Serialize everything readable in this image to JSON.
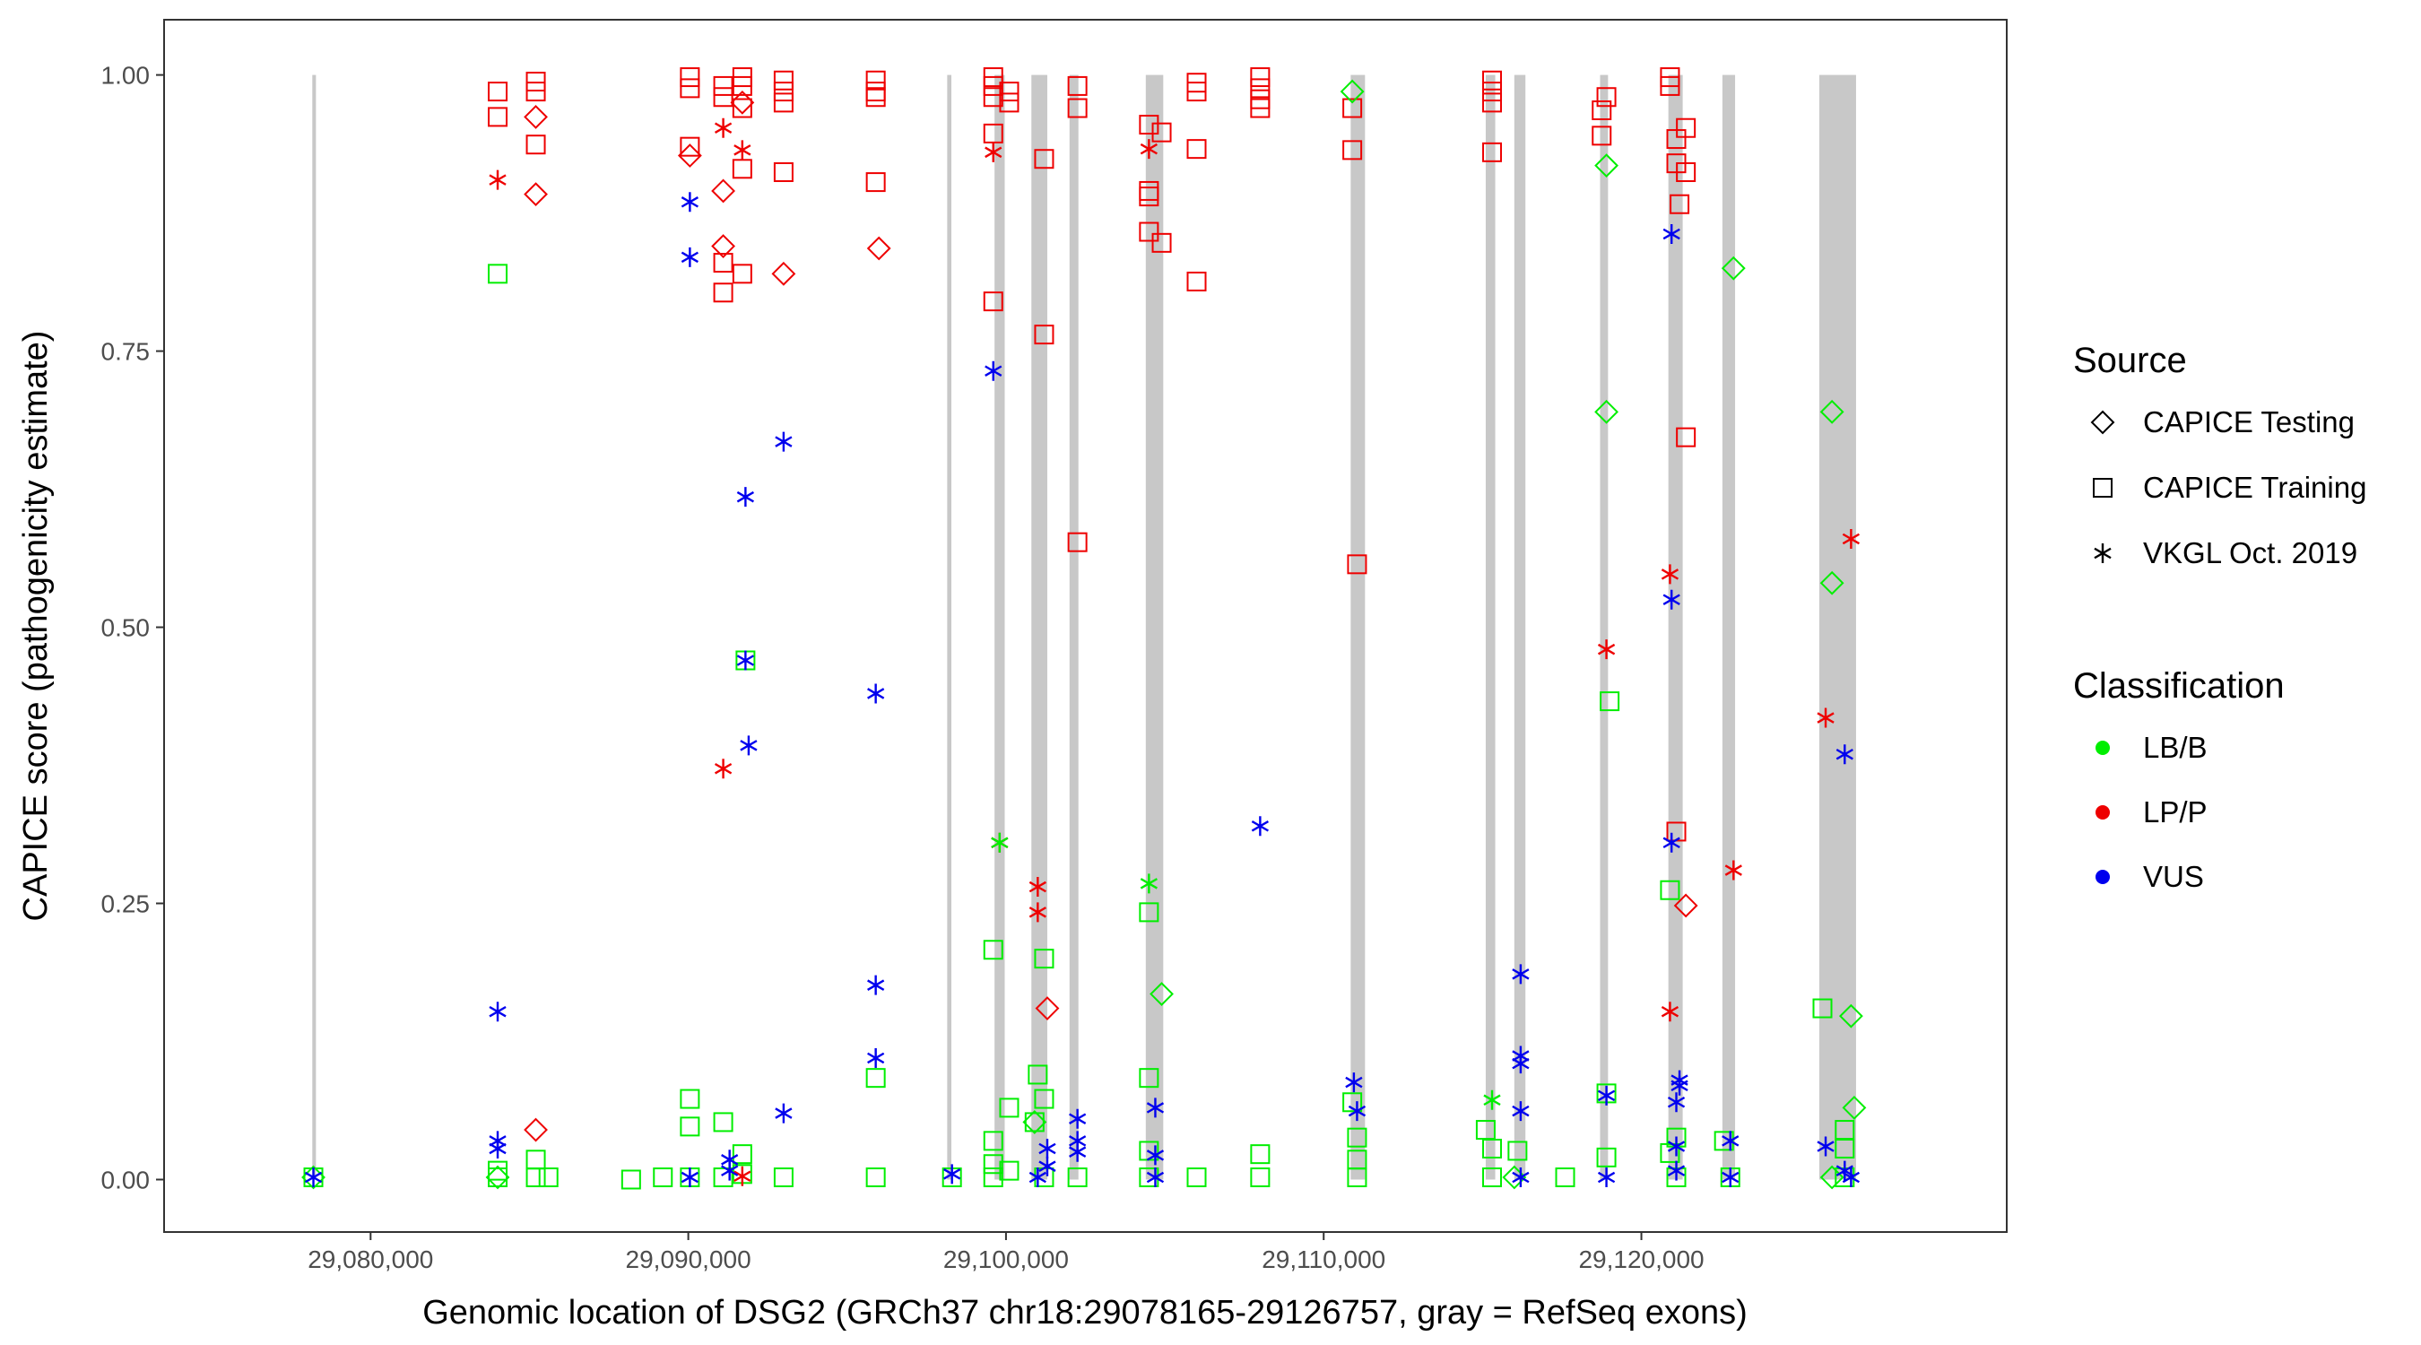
{
  "chart_data": {
    "type": "scatter",
    "title": "",
    "xlabel": "Genomic location of DSG2 (GRCh37 chr18:29078165-29126757, gray = RefSeq exons)",
    "ylabel": "CAPICE score (pathogenicity estimate)",
    "xlim": [
      29073500,
      29131500
    ],
    "ylim": [
      -0.0475,
      1.05
    ],
    "x_ticks": [
      29080000,
      29090000,
      29100000,
      29110000,
      29120000
    ],
    "x_tick_labels": [
      "29,080,000",
      "29,090,000",
      "29,100,000",
      "29,110,000",
      "29,120,000"
    ],
    "y_ticks": [
      0,
      0.25,
      0.5,
      0.75,
      1
    ],
    "y_tick_labels": [
      "0.00",
      "0.25",
      "0.50",
      "0.75",
      "1.00"
    ],
    "grid": false,
    "exons": [
      [
        29078165,
        29078280
      ],
      [
        29098150,
        29098280
      ],
      [
        29099640,
        29099960
      ],
      [
        29100800,
        29101300
      ],
      [
        29102000,
        29102280
      ],
      [
        29104400,
        29104950
      ],
      [
        29110850,
        29111300
      ],
      [
        29115100,
        29115400
      ],
      [
        29116000,
        29116350
      ],
      [
        29118700,
        29118950
      ],
      [
        29120850,
        29121300
      ],
      [
        29122550,
        29122950
      ],
      [
        29125600,
        29126757
      ]
    ],
    "legend_source": {
      "title": "Source",
      "position": "right",
      "entries": [
        {
          "label": "CAPICE Testing",
          "shape": "diamond"
        },
        {
          "label": "CAPICE Training",
          "shape": "square"
        },
        {
          "label": "VKGL Oct. 2019",
          "shape": "asterisk"
        }
      ]
    },
    "legend_class": {
      "title": "Classification",
      "position": "right",
      "entries": [
        {
          "label": "LB/B",
          "color": "#00ee00"
        },
        {
          "label": "LP/P",
          "color": "#ee0000"
        },
        {
          "label": "VUS",
          "color": "#0000ee"
        }
      ]
    },
    "series": [
      {
        "source": "CAPICE Training",
        "classification": "LP/P",
        "points": [
          [
            29084000,
            0.985
          ],
          [
            29084000,
            0.962
          ],
          [
            29085200,
            0.994
          ],
          [
            29085200,
            0.985
          ],
          [
            29085200,
            0.937
          ],
          [
            29090050,
            0.998
          ],
          [
            29090050,
            0.988
          ],
          [
            29090050,
            0.935
          ],
          [
            29091100,
            0.99
          ],
          [
            29091100,
            0.98
          ],
          [
            29091100,
            0.83
          ],
          [
            29091100,
            0.803
          ],
          [
            29091700,
            0.998
          ],
          [
            29091700,
            0.99
          ],
          [
            29091700,
            0.97
          ],
          [
            29091700,
            0.915
          ],
          [
            29091700,
            0.82
          ],
          [
            29093000,
            0.995
          ],
          [
            29093000,
            0.985
          ],
          [
            29093000,
            0.975
          ],
          [
            29093000,
            0.912
          ],
          [
            29095900,
            0.995
          ],
          [
            29095900,
            0.985
          ],
          [
            29095900,
            0.98
          ],
          [
            29095900,
            0.903
          ],
          [
            29099600,
            0.998
          ],
          [
            29099600,
            0.99
          ],
          [
            29099600,
            0.98
          ],
          [
            29099600,
            0.947
          ],
          [
            29099600,
            0.795
          ],
          [
            29100100,
            0.985
          ],
          [
            29100100,
            0.975
          ],
          [
            29101200,
            0.924
          ],
          [
            29101200,
            0.765
          ],
          [
            29102250,
            0.99
          ],
          [
            29102250,
            0.97
          ],
          [
            29102250,
            0.577
          ],
          [
            29104500,
            0.955
          ],
          [
            29104500,
            0.895
          ],
          [
            29104500,
            0.89
          ],
          [
            29104500,
            0.858
          ],
          [
            29104900,
            0.948
          ],
          [
            29104900,
            0.848
          ],
          [
            29106000,
            0.993
          ],
          [
            29106000,
            0.985
          ],
          [
            29106000,
            0.933
          ],
          [
            29106000,
            0.813
          ],
          [
            29108000,
            0.998
          ],
          [
            29108000,
            0.988
          ],
          [
            29108000,
            0.978
          ],
          [
            29108000,
            0.97
          ],
          [
            29110900,
            0.97
          ],
          [
            29110900,
            0.932
          ],
          [
            29111050,
            0.557
          ],
          [
            29115300,
            0.995
          ],
          [
            29115300,
            0.985
          ],
          [
            29115300,
            0.975
          ],
          [
            29115300,
            0.93
          ],
          [
            29118750,
            0.968
          ],
          [
            29118750,
            0.945
          ],
          [
            29118900,
            0.98
          ],
          [
            29120900,
            0.998
          ],
          [
            29120900,
            0.99
          ],
          [
            29121100,
            0.92
          ],
          [
            29121100,
            0.942
          ],
          [
            29121200,
            0.883
          ],
          [
            29121400,
            0.952
          ],
          [
            29121400,
            0.912
          ],
          [
            29121400,
            0.672
          ],
          [
            29121100,
            0.315
          ]
        ]
      },
      {
        "source": "CAPICE Training",
        "classification": "LB/B",
        "points": [
          [
            29078200,
            0.002
          ],
          [
            29084000,
            0.82
          ],
          [
            29084000,
            0.008
          ],
          [
            29084000,
            0.002
          ],
          [
            29085200,
            0.018
          ],
          [
            29085200,
            0.002
          ],
          [
            29085600,
            0.002
          ],
          [
            29088200,
            0.0
          ],
          [
            29089200,
            0.002
          ],
          [
            29090050,
            0.073
          ],
          [
            29090050,
            0.048
          ],
          [
            29090050,
            0.002
          ],
          [
            29091100,
            0.052
          ],
          [
            29091100,
            0.002
          ],
          [
            29091700,
            0.023
          ],
          [
            29091700,
            0.005
          ],
          [
            29093000,
            0.002
          ],
          [
            29095900,
            0.092
          ],
          [
            29095900,
            0.002
          ],
          [
            29098300,
            0.002
          ],
          [
            29099600,
            0.208
          ],
          [
            29099600,
            0.035
          ],
          [
            29099600,
            0.014
          ],
          [
            29099600,
            0.002
          ],
          [
            29100100,
            0.065
          ],
          [
            29100100,
            0.008
          ],
          [
            29100900,
            0.052
          ],
          [
            29101000,
            0.095
          ],
          [
            29101200,
            0.073
          ],
          [
            29101200,
            0.2
          ],
          [
            29101200,
            0.002
          ],
          [
            29102250,
            0.002
          ],
          [
            29104500,
            0.092
          ],
          [
            29104500,
            0.026
          ],
          [
            29104500,
            0.242
          ],
          [
            29104500,
            0.002
          ],
          [
            29106000,
            0.002
          ],
          [
            29108000,
            0.023
          ],
          [
            29108000,
            0.002
          ],
          [
            29110900,
            0.07
          ],
          [
            29111050,
            0.038
          ],
          [
            29111050,
            0.018
          ],
          [
            29111050,
            0.002
          ],
          [
            29115100,
            0.045
          ],
          [
            29115300,
            0.028
          ],
          [
            29115300,
            0.002
          ],
          [
            29116100,
            0.026
          ],
          [
            29117600,
            0.002
          ],
          [
            29118900,
            0.078
          ],
          [
            29118900,
            0.02
          ],
          [
            29119000,
            0.433
          ],
          [
            29120900,
            0.262
          ],
          [
            29120900,
            0.024
          ],
          [
            29121100,
            0.038
          ],
          [
            29121100,
            0.002
          ],
          [
            29122600,
            0.035
          ],
          [
            29122800,
            0.002
          ],
          [
            29125700,
            0.155
          ],
          [
            29126400,
            0.045
          ],
          [
            29126400,
            0.028
          ],
          [
            29126400,
            0.002
          ],
          [
            29091800,
            0.47
          ]
        ]
      },
      {
        "source": "CAPICE Testing",
        "classification": "LP/P",
        "points": [
          [
            29085200,
            0.962
          ],
          [
            29085200,
            0.892
          ],
          [
            29085200,
            0.045
          ],
          [
            29090050,
            0.927
          ],
          [
            29091100,
            0.895
          ],
          [
            29091100,
            0.845
          ],
          [
            29091700,
            0.975
          ],
          [
            29093000,
            0.82
          ],
          [
            29096000,
            0.843
          ],
          [
            29101300,
            0.155
          ],
          [
            29121400,
            0.248
          ]
        ]
      },
      {
        "source": "CAPICE Testing",
        "classification": "LB/B",
        "points": [
          [
            29078200,
            0.002
          ],
          [
            29100900,
            0.052
          ],
          [
            29104900,
            0.168
          ],
          [
            29110900,
            0.985
          ],
          [
            29118900,
            0.918
          ],
          [
            29118900,
            0.695
          ],
          [
            29122900,
            0.825
          ],
          [
            29126000,
            0.695
          ],
          [
            29126000,
            0.54
          ],
          [
            29126600,
            0.148
          ],
          [
            29126700,
            0.065
          ],
          [
            29126000,
            0.002
          ],
          [
            29116000,
            0.002
          ],
          [
            29084000,
            0.002
          ]
        ]
      },
      {
        "source": "VKGL Oct. 2019",
        "classification": "LP/P",
        "points": [
          [
            29084000,
            0.905
          ],
          [
            29091100,
            0.952
          ],
          [
            29091100,
            0.372
          ],
          [
            29091700,
            0.932
          ],
          [
            29091700,
            0.003
          ],
          [
            29099600,
            0.93
          ],
          [
            29099800,
            0.305
          ],
          [
            29101000,
            0.265
          ],
          [
            29101000,
            0.242
          ],
          [
            29104500,
            0.933
          ],
          [
            29118900,
            0.48
          ],
          [
            29120900,
            0.548
          ],
          [
            29120900,
            0.152
          ],
          [
            29122900,
            0.28
          ],
          [
            29125800,
            0.418
          ],
          [
            29126600,
            0.58
          ]
        ]
      },
      {
        "source": "VKGL Oct. 2019",
        "classification": "LB/B",
        "points": [
          [
            29104500,
            0.268
          ],
          [
            29115300,
            0.072
          ],
          [
            29099800,
            0.305
          ]
        ]
      },
      {
        "source": "VKGL Oct. 2019",
        "classification": "VUS",
        "points": [
          [
            29078200,
            0.002
          ],
          [
            29084000,
            0.152
          ],
          [
            29084000,
            0.035
          ],
          [
            29084000,
            0.028
          ],
          [
            29090050,
            0.885
          ],
          [
            29090050,
            0.835
          ],
          [
            29090050,
            0.002
          ],
          [
            29091300,
            0.018
          ],
          [
            29091300,
            0.008
          ],
          [
            29091800,
            0.618
          ],
          [
            29091800,
            0.47
          ],
          [
            29091900,
            0.393
          ],
          [
            29093000,
            0.668
          ],
          [
            29093000,
            0.06
          ],
          [
            29095900,
            0.44
          ],
          [
            29095900,
            0.176
          ],
          [
            29095900,
            0.11
          ],
          [
            29098300,
            0.005
          ],
          [
            29099600,
            0.732
          ],
          [
            29101000,
            0.002
          ],
          [
            29101300,
            0.028
          ],
          [
            29101300,
            0.012
          ],
          [
            29102250,
            0.055
          ],
          [
            29102250,
            0.035
          ],
          [
            29102250,
            0.025
          ],
          [
            29104700,
            0.065
          ],
          [
            29104700,
            0.022
          ],
          [
            29104700,
            0.002
          ],
          [
            29108000,
            0.32
          ],
          [
            29110950,
            0.088
          ],
          [
            29111050,
            0.062
          ],
          [
            29116200,
            0.186
          ],
          [
            29116200,
            0.112
          ],
          [
            29116200,
            0.105
          ],
          [
            29116200,
            0.062
          ],
          [
            29116200,
            0.002
          ],
          [
            29118900,
            0.076
          ],
          [
            29118900,
            0.002
          ],
          [
            29120950,
            0.856
          ],
          [
            29120950,
            0.525
          ],
          [
            29120950,
            0.305
          ],
          [
            29121200,
            0.09
          ],
          [
            29121200,
            0.085
          ],
          [
            29121100,
            0.07
          ],
          [
            29121100,
            0.03
          ],
          [
            29121100,
            0.008
          ],
          [
            29122800,
            0.035
          ],
          [
            29122800,
            0.002
          ],
          [
            29125800,
            0.03
          ],
          [
            29126400,
            0.385
          ],
          [
            29126400,
            0.008
          ],
          [
            29126600,
            0.002
          ]
        ]
      }
    ]
  }
}
